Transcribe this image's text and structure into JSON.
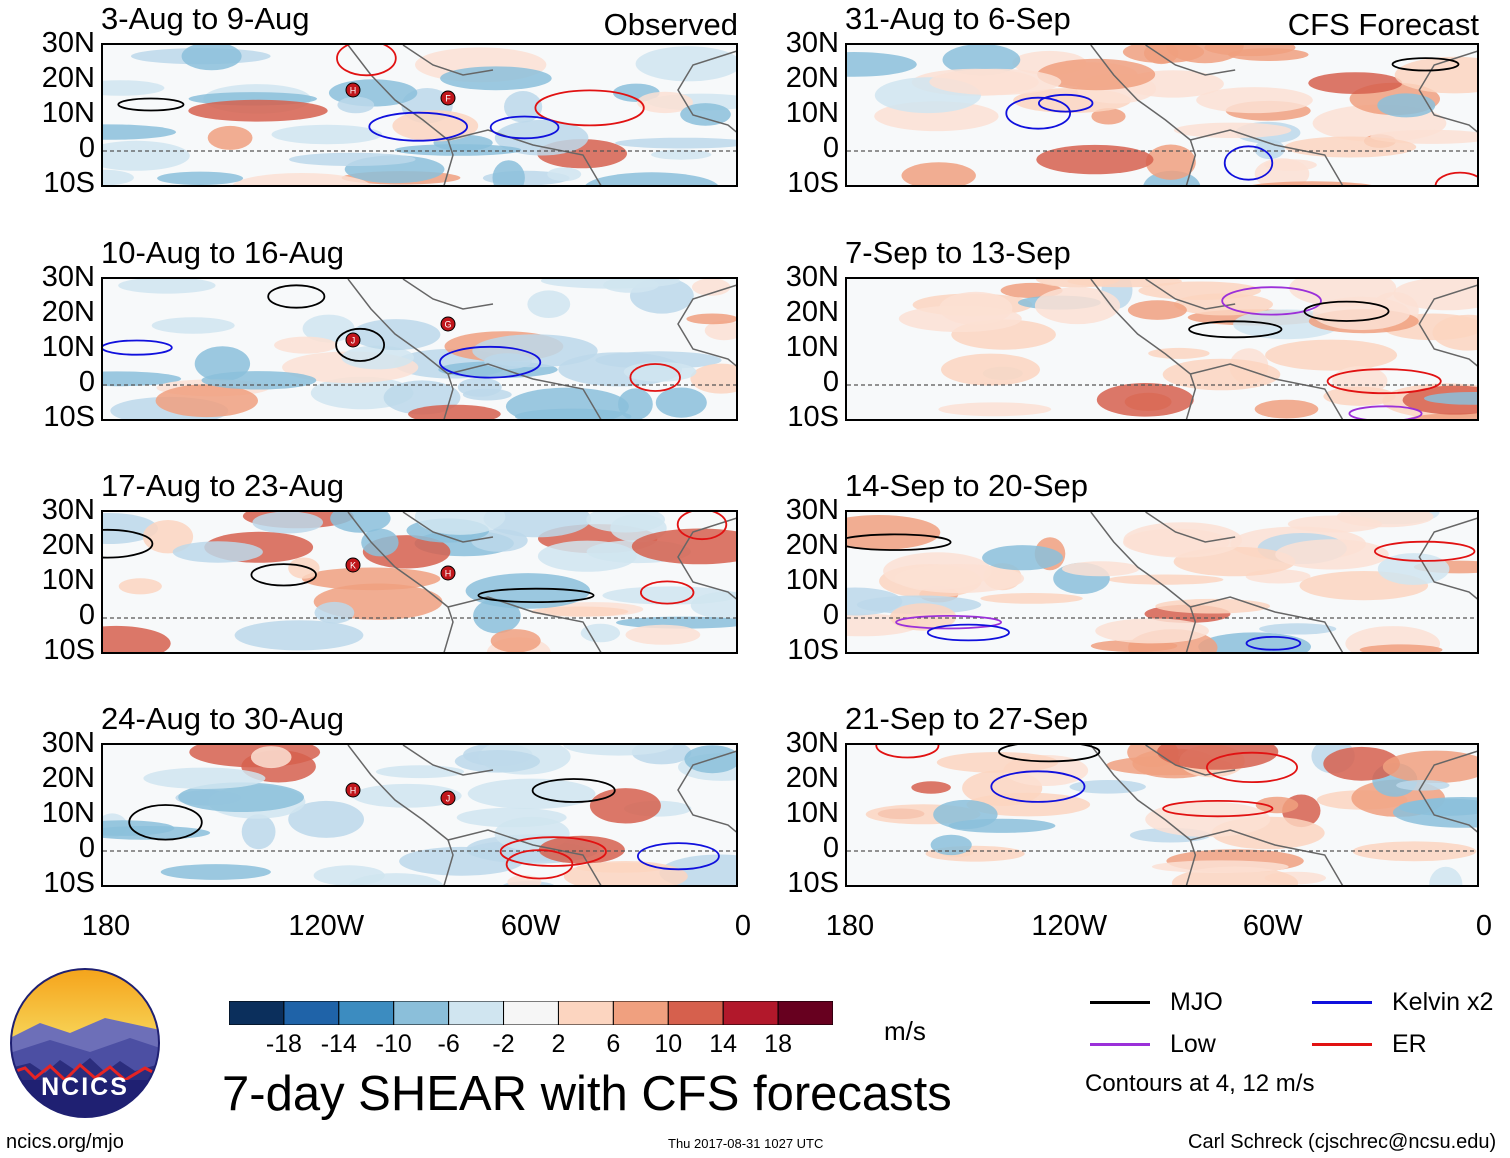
{
  "panels_left": [
    {
      "title": "3-Aug to 9-Aug",
      "tag": "Observed"
    },
    {
      "title": "10-Aug to 16-Aug",
      "tag": ""
    },
    {
      "title": "17-Aug to 23-Aug",
      "tag": ""
    },
    {
      "title": "24-Aug to 30-Aug",
      "tag": ""
    }
  ],
  "panels_right": [
    {
      "title": "31-Aug to 6-Sep",
      "tag": "CFS Forecast"
    },
    {
      "title": "7-Sep to 13-Sep",
      "tag": ""
    },
    {
      "title": "14-Sep to 20-Sep",
      "tag": ""
    },
    {
      "title": "21-Sep to 27-Sep",
      "tag": ""
    }
  ],
  "lat_ticks": [
    "30N",
    "20N",
    "10N",
    "0",
    "10S"
  ],
  "lon_ticks": [
    "180",
    "120W",
    "60W",
    "0"
  ],
  "colorbar": {
    "unit": "m/s",
    "ticks": [
      "-18",
      "-14",
      "-10",
      "-6",
      "-2",
      "2",
      "6",
      "10",
      "14",
      "18"
    ],
    "colors": [
      "#0b2f5c",
      "#1f63a8",
      "#3c8cc0",
      "#8bbfda",
      "#d0e5f0",
      "#f6f6f6",
      "#fcd5c0",
      "#f0a07f",
      "#d6604d",
      "#b2182b",
      "#67001f"
    ]
  },
  "legend": {
    "mjo": "MJO",
    "kelvin": "Kelvin x2",
    "low": "Low",
    "er": "ER",
    "note": "Contours at 4, 12 m/s",
    "colors": {
      "mjo": "#000000",
      "kelvin": "#1010dd",
      "low": "#9b30d9",
      "er": "#e11212"
    }
  },
  "main_title": "7-day SHEAR with CFS forecasts",
  "logo": {
    "text": "NCICS"
  },
  "footer": {
    "url": "ncics.org/mjo",
    "timestamp": "Thu 2017-08-31 1027 UTC",
    "author": "Carl Schreck (cjschrec@ncsu.edu)"
  },
  "storm_markers": [
    {
      "panel": 0,
      "label": "H"
    },
    {
      "panel": 0,
      "label": "F"
    },
    {
      "panel": 1,
      "label": "J"
    },
    {
      "panel": 1,
      "label": "G"
    },
    {
      "panel": 2,
      "label": "K"
    },
    {
      "panel": 2,
      "label": "H"
    },
    {
      "panel": 3,
      "label": "H"
    },
    {
      "panel": 3,
      "label": "J"
    }
  ]
}
